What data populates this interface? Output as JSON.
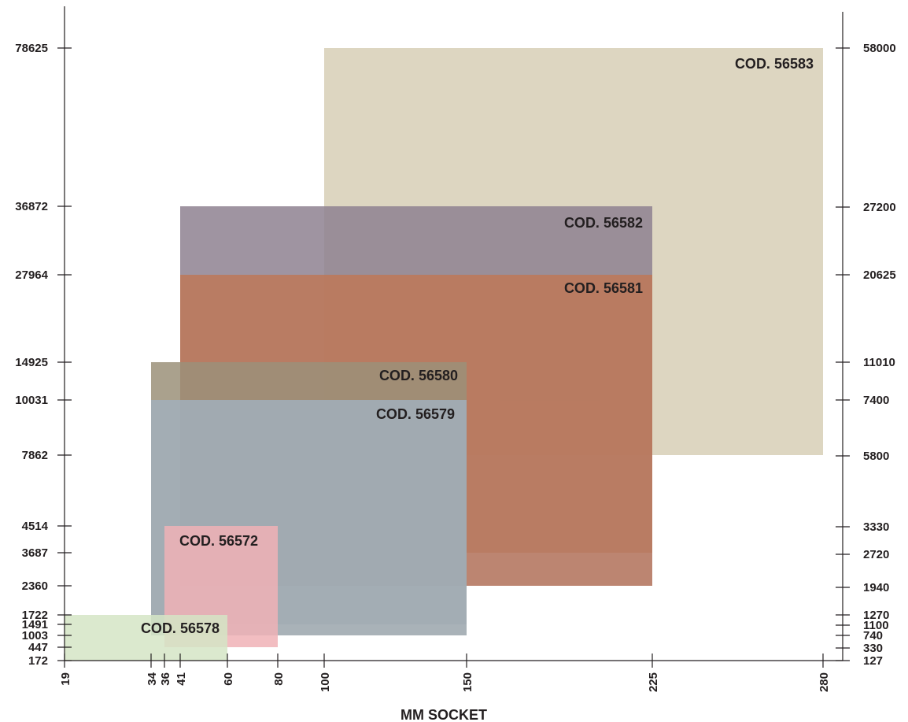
{
  "chart_data": {
    "type": "range-boxes",
    "xlabel": "MM SOCKET",
    "x_ticks": [
      "19",
      "34",
      "36",
      "41",
      "60",
      "80",
      "100",
      "150",
      "225",
      "280"
    ],
    "y_left_ticks": [
      "172",
      "447",
      "1003",
      "1491",
      "1722",
      "2360",
      "3687",
      "4514",
      "7862",
      "10031",
      "14925",
      "27964",
      "36872",
      "78625"
    ],
    "y_right_ticks": [
      "127",
      "330",
      "740",
      "1100",
      "1270",
      "1940",
      "2720",
      "3330",
      "5800",
      "7400",
      "11010",
      "20625",
      "27200",
      "58000"
    ],
    "boxes": [
      {
        "name": "COD. 56583",
        "x": [
          100,
          280
        ],
        "y": [
          7862,
          78625
        ],
        "color": "#d7cfb6"
      },
      {
        "name": "COD. 56581",
        "x": [
          41,
          225
        ],
        "y": [
          2360,
          27964
        ],
        "color": "#b07058",
        "y_secondary": [
          3687,
          27964
        ],
        "color_secondary": "#e8b48d"
      },
      {
        "name": "COD. 56582",
        "x": [
          41,
          225
        ],
        "y": [
          27964,
          36872
        ],
        "color": "#8e8190"
      },
      {
        "name": "COD. 56579",
        "x": [
          34,
          150
        ],
        "y": [
          1003,
          10031
        ],
        "color": "#9aa5ab",
        "y_secondary": [
          1491,
          10031
        ],
        "color_secondary": "#cbd2e0"
      },
      {
        "name": "COD. 56580",
        "x": [
          34,
          150
        ],
        "y": [
          10031,
          14925
        ],
        "color": "#9b9079"
      },
      {
        "name": "COD. 56572",
        "x": [
          36,
          80
        ],
        "y": [
          447,
          4514
        ],
        "color": "#f0b2b6"
      },
      {
        "name": "COD. 56578",
        "x": [
          19,
          60
        ],
        "y": [
          172,
          1722
        ],
        "color": "#d5e5c6"
      }
    ]
  }
}
